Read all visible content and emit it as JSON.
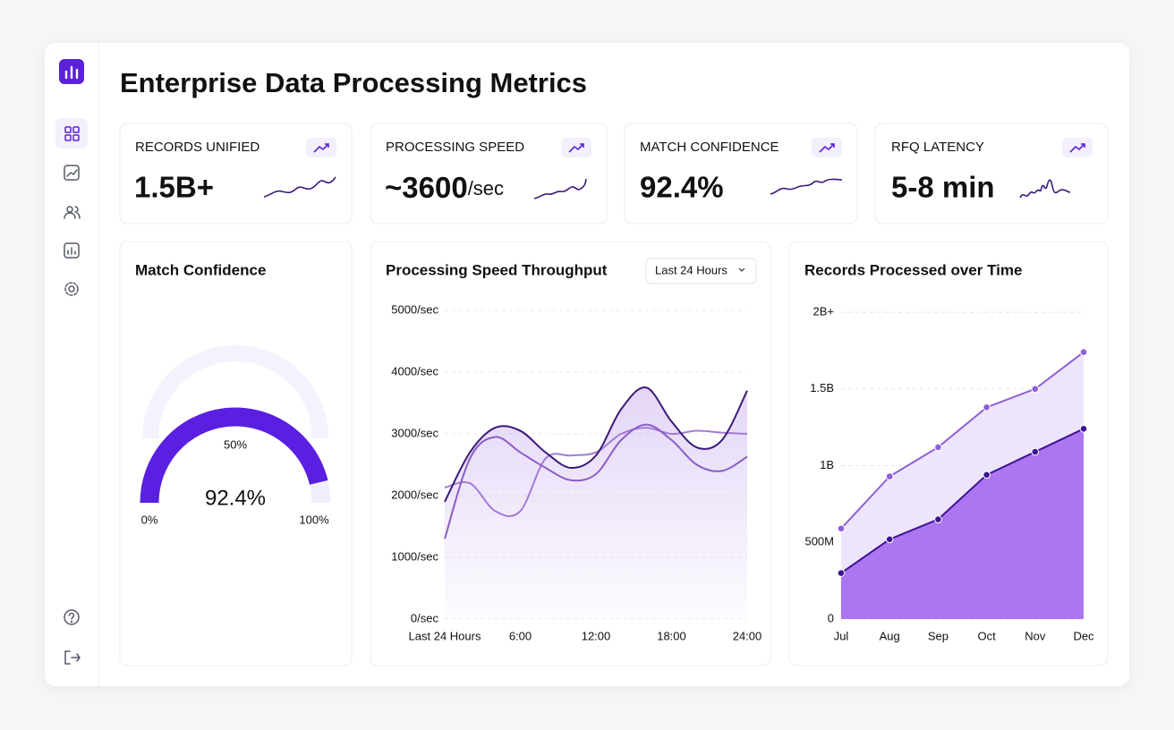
{
  "header": {
    "title": "Enterprise Data Processing Metrics"
  },
  "kpis": [
    {
      "label": "RECORDS UNIFIED",
      "value": "1.5B+"
    },
    {
      "label": "PROCESSING SPEED",
      "value": "~3600",
      "unit": "/sec"
    },
    {
      "label": "MATCH CONFIDENCE",
      "value": "92.4%"
    },
    {
      "label": "RFQ LATENCY",
      "value": "5-8 min"
    }
  ],
  "chart_data": [
    {
      "type": "gauge",
      "title": "Match Confidence",
      "value": 92.4,
      "value_label": "92.4%",
      "color": "#5a1fe0",
      "ylim": [
        0,
        100
      ],
      "yticks": [
        {
          "value": 0,
          "label": "0%"
        },
        {
          "value": 50,
          "label": "50%"
        },
        {
          "value": 100,
          "label": "100%"
        }
      ]
    },
    {
      "type": "line",
      "title": "Processing Speed Throughput",
      "dropdown": "Last 24 Hours",
      "x": [
        0,
        2,
        4,
        6,
        8,
        10,
        12,
        14,
        16,
        18,
        20,
        22,
        24
      ],
      "xlim": [
        0,
        24
      ],
      "xticks": [
        {
          "value": 0,
          "label": "Last 24 Hours"
        },
        {
          "value": 6,
          "label": "6:00"
        },
        {
          "value": 12,
          "label": "12:00"
        },
        {
          "value": 18,
          "label": "18:00"
        },
        {
          "value": 24,
          "label": "24:00"
        }
      ],
      "ylim": [
        0,
        5000
      ],
      "yticks": [
        {
          "value": 0,
          "label": "0/sec"
        },
        {
          "value": 1000,
          "label": "1000/sec"
        },
        {
          "value": 2000,
          "label": "2000/sec"
        },
        {
          "value": 3000,
          "label": "3000/sec"
        },
        {
          "value": 4000,
          "label": "4000/sec"
        },
        {
          "value": 5000,
          "label": "5000/sec"
        }
      ],
      "grid": true,
      "series": [
        {
          "color": "#3b1a7a",
          "values": [
            1900,
            2700,
            3100,
            3050,
            2700,
            2450,
            2650,
            3400,
            3750,
            3200,
            2780,
            2900,
            3700
          ]
        },
        {
          "color": "#8b5cc7",
          "values": [
            1300,
            2600,
            2950,
            2700,
            2450,
            2250,
            2350,
            2900,
            3150,
            2900,
            2500,
            2400,
            2630
          ]
        },
        {
          "color": "#a27bd6",
          "values": [
            2130,
            2200,
            1750,
            1750,
            2600,
            2650,
            2700,
            3000,
            3100,
            3000,
            3050,
            3020,
            3000
          ]
        }
      ]
    },
    {
      "type": "area",
      "title": "Records Processed over Time",
      "categories": [
        "Jul",
        "Aug",
        "Sep",
        "Oct",
        "Nov",
        "Dec"
      ],
      "ylim": [
        0,
        2000000000
      ],
      "yticks": [
        0,
        {
          "value": 500000000,
          "label": "500M"
        },
        {
          "value": 1000000000,
          "label": "1B"
        },
        {
          "value": 1500000000,
          "label": "1.5B"
        },
        {
          "value": 2000000000,
          "label": "2B+"
        }
      ],
      "grid": true,
      "series": [
        {
          "color": "#8e5fd6",
          "fill": "#ece3fb",
          "values": [
            590000000,
            930000000,
            1120000000,
            1380000000,
            1500000000,
            1740000000
          ]
        },
        {
          "color": "#3d1594",
          "fill": "#a66bf0",
          "values": [
            300000000,
            520000000,
            650000000,
            940000000,
            1090000000,
            1240000000
          ]
        }
      ]
    }
  ]
}
